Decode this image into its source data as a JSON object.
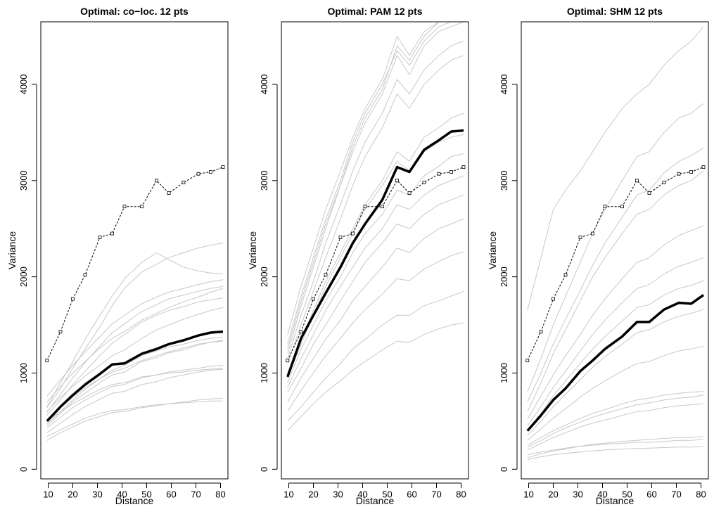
{
  "chart_data": [
    {
      "type": "line",
      "title": "Optimal: co−loc. 12 pts",
      "xlabel": "Distance",
      "ylabel": "Variance",
      "xlim": [
        7,
        83
      ],
      "ylim": [
        -100,
        4650
      ],
      "xticks": [
        10,
        20,
        30,
        40,
        50,
        60,
        70,
        80
      ],
      "yticks": [
        0,
        1000,
        2000,
        3000,
        4000
      ],
      "x": [
        9.5,
        15,
        20,
        25,
        31,
        36,
        41,
        48,
        54,
        59,
        65,
        71,
        76,
        81
      ],
      "series": [
        {
          "role": "empirical",
          "values": [
            1130,
            1430,
            1770,
            2020,
            2410,
            2450,
            2730,
            2730,
            3000,
            2870,
            2980,
            3070,
            3090,
            3140
          ]
        },
        {
          "role": "mean",
          "values": [
            500,
            650,
            770,
            880,
            990,
            1090,
            1100,
            1200,
            1250,
            1300,
            1340,
            1390,
            1420,
            1430
          ]
        },
        {
          "role": "simulated",
          "values": [
            600,
            750,
            860,
            970,
            1080,
            1180,
            1240,
            1360,
            1450,
            1500,
            1560,
            1610,
            1650,
            1680
          ]
        },
        {
          "role": "simulated",
          "values": [
            450,
            580,
            700,
            790,
            900,
            980,
            1010,
            1120,
            1160,
            1210,
            1240,
            1290,
            1320,
            1330
          ]
        },
        {
          "role": "simulated",
          "values": [
            700,
            860,
            1000,
            1120,
            1260,
            1360,
            1430,
            1550,
            1620,
            1680,
            1740,
            1790,
            1840,
            1880
          ]
        },
        {
          "role": "simulated",
          "values": [
            380,
            480,
            570,
            650,
            730,
            790,
            810,
            880,
            910,
            950,
            980,
            1010,
            1030,
            1040
          ]
        },
        {
          "role": "simulated",
          "values": [
            650,
            900,
            1120,
            1350,
            1600,
            1800,
            1980,
            2150,
            2250,
            2180,
            2100,
            2060,
            2040,
            2030
          ]
        },
        {
          "role": "simulated",
          "values": [
            520,
            640,
            750,
            850,
            940,
            1010,
            1050,
            1130,
            1180,
            1220,
            1260,
            1300,
            1320,
            1340
          ]
        },
        {
          "role": "simulated",
          "values": [
            300,
            380,
            440,
            500,
            550,
            590,
            600,
            640,
            660,
            680,
            700,
            720,
            730,
            740
          ]
        },
        {
          "role": "simulated",
          "values": [
            560,
            720,
            880,
            1020,
            1180,
            1310,
            1400,
            1530,
            1600,
            1650,
            1690,
            1740,
            1760,
            1780
          ]
        },
        {
          "role": "simulated",
          "values": [
            430,
            540,
            640,
            720,
            800,
            860,
            880,
            950,
            980,
            1010,
            1030,
            1050,
            1070,
            1080
          ]
        },
        {
          "role": "simulated",
          "values": [
            640,
            840,
            1050,
            1250,
            1480,
            1700,
            1880,
            2050,
            2130,
            2200,
            2250,
            2300,
            2330,
            2350
          ]
        },
        {
          "role": "simulated",
          "values": [
            500,
            600,
            680,
            750,
            830,
            880,
            900,
            960,
            980,
            1000,
            1010,
            1030,
            1040,
            1050
          ]
        },
        {
          "role": "simulated",
          "values": [
            760,
            930,
            1080,
            1220,
            1380,
            1510,
            1600,
            1720,
            1790,
            1840,
            1880,
            1920,
            1950,
            1970
          ]
        },
        {
          "role": "simulated",
          "values": [
            340,
            410,
            470,
            530,
            580,
            610,
            620,
            650,
            670,
            680,
            690,
            700,
            710,
            710
          ]
        },
        {
          "role": "simulated",
          "values": [
            590,
            780,
            950,
            1110,
            1280,
            1420,
            1510,
            1640,
            1710,
            1770,
            1810,
            1850,
            1880,
            1900
          ]
        },
        {
          "role": "simulated",
          "values": [
            470,
            600,
            720,
            830,
            940,
            1030,
            1080,
            1180,
            1230,
            1270,
            1300,
            1340,
            1360,
            1370
          ]
        }
      ]
    },
    {
      "type": "line",
      "title": "Optimal: PAM 12 pts",
      "xlabel": "Distance",
      "ylabel": "Variance",
      "xlim": [
        7,
        83
      ],
      "ylim": [
        -100,
        4650
      ],
      "xticks": [
        10,
        20,
        30,
        40,
        50,
        60,
        70,
        80
      ],
      "yticks": [
        0,
        1000,
        2000,
        3000,
        4000
      ],
      "x": [
        9.5,
        15,
        20,
        25,
        31,
        36,
        41,
        48,
        54,
        59,
        65,
        71,
        76,
        81
      ],
      "series": [
        {
          "role": "empirical",
          "values": [
            1130,
            1430,
            1770,
            2020,
            2410,
            2450,
            2730,
            2730,
            3000,
            2870,
            2980,
            3070,
            3090,
            3140
          ]
        },
        {
          "role": "mean",
          "values": [
            960,
            1360,
            1600,
            1830,
            2100,
            2350,
            2550,
            2800,
            3140,
            3090,
            3320,
            3420,
            3510,
            3520
          ]
        },
        {
          "role": "simulated",
          "values": [
            1200,
            1700,
            2100,
            2500,
            2950,
            3300,
            3600,
            3900,
            4300,
            4100,
            4400,
            4550,
            4600,
            4650
          ]
        },
        {
          "role": "simulated",
          "values": [
            900,
            1250,
            1500,
            1750,
            2000,
            2250,
            2450,
            2650,
            2900,
            2850,
            3050,
            3150,
            3250,
            3280
          ]
        },
        {
          "role": "simulated",
          "values": [
            1400,
            1900,
            2300,
            2700,
            3100,
            3450,
            3750,
            4050,
            4500,
            4300,
            4550,
            4650,
            4650,
            4650
          ]
        },
        {
          "role": "simulated",
          "values": [
            700,
            950,
            1150,
            1350,
            1550,
            1750,
            1900,
            2100,
            2300,
            2250,
            2400,
            2500,
            2550,
            2600
          ]
        },
        {
          "role": "simulated",
          "values": [
            1100,
            1500,
            1850,
            2200,
            2600,
            2950,
            3250,
            3550,
            3900,
            3750,
            4000,
            4150,
            4250,
            4300
          ]
        },
        {
          "role": "simulated",
          "values": [
            500,
            650,
            800,
            950,
            1100,
            1250,
            1350,
            1500,
            1600,
            1600,
            1700,
            1750,
            1800,
            1850
          ]
        },
        {
          "role": "simulated",
          "values": [
            1000,
            1350,
            1650,
            1950,
            2250,
            2500,
            2750,
            3000,
            3300,
            3200,
            3450,
            3550,
            3650,
            3700
          ]
        },
        {
          "role": "simulated",
          "values": [
            1300,
            1800,
            2200,
            2600,
            3000,
            3400,
            3700,
            4000,
            4350,
            4200,
            4450,
            4600,
            4650,
            4650
          ]
        },
        {
          "role": "simulated",
          "values": [
            800,
            1050,
            1300,
            1500,
            1750,
            1950,
            2150,
            2350,
            2550,
            2500,
            2650,
            2750,
            2800,
            2850
          ]
        },
        {
          "role": "simulated",
          "values": [
            400,
            550,
            680,
            800,
            920,
            1030,
            1120,
            1240,
            1330,
            1320,
            1400,
            1460,
            1500,
            1520
          ]
        },
        {
          "role": "simulated",
          "values": [
            1150,
            1600,
            1950,
            2350,
            2750,
            3100,
            3400,
            3700,
            4050,
            3900,
            4150,
            4300,
            4400,
            4450
          ]
        },
        {
          "role": "simulated",
          "values": [
            600,
            820,
            1000,
            1180,
            1360,
            1520,
            1660,
            1820,
            1980,
            1960,
            2080,
            2160,
            2220,
            2260
          ]
        },
        {
          "role": "simulated",
          "values": [
            950,
            1300,
            1600,
            1900,
            2200,
            2450,
            2700,
            2950,
            3200,
            3100,
            3300,
            3400,
            3450,
            3480
          ]
        },
        {
          "role": "simulated",
          "values": [
            1250,
            1750,
            2150,
            2550,
            2950,
            3350,
            3650,
            3950,
            4400,
            4250,
            4500,
            4650,
            4650,
            4650
          ]
        },
        {
          "role": "simulated",
          "values": [
            850,
            1150,
            1400,
            1650,
            1900,
            2100,
            2300,
            2500,
            2750,
            2700,
            2850,
            2950,
            3000,
            3050
          ]
        }
      ]
    },
    {
      "type": "line",
      "title": "Optimal: SHM 12 pts",
      "xlabel": "Distance",
      "ylabel": "Variance",
      "xlim": [
        7,
        83
      ],
      "ylim": [
        -100,
        4650
      ],
      "xticks": [
        10,
        20,
        30,
        40,
        50,
        60,
        70,
        80
      ],
      "yticks": [
        0,
        1000,
        2000,
        3000,
        4000
      ],
      "x": [
        9.5,
        15,
        20,
        25,
        31,
        36,
        41,
        48,
        54,
        59,
        65,
        71,
        76,
        81
      ],
      "series": [
        {
          "role": "empirical",
          "values": [
            1130,
            1430,
            1770,
            2020,
            2410,
            2450,
            2730,
            2730,
            3000,
            2870,
            2980,
            3070,
            3090,
            3140
          ]
        },
        {
          "role": "mean",
          "values": [
            400,
            560,
            720,
            840,
            1020,
            1130,
            1250,
            1380,
            1530,
            1530,
            1660,
            1730,
            1720,
            1810
          ]
        },
        {
          "role": "simulated",
          "values": [
            1650,
            2200,
            2700,
            2900,
            3100,
            3300,
            3500,
            3750,
            3900,
            4000,
            4200,
            4350,
            4450,
            4600
          ]
        },
        {
          "role": "simulated",
          "values": [
            150,
            180,
            200,
            220,
            240,
            250,
            260,
            270,
            280,
            280,
            290,
            300,
            300,
            310
          ]
        },
        {
          "role": "simulated",
          "values": [
            600,
            900,
            1200,
            1450,
            1750,
            2000,
            2200,
            2450,
            2650,
            2700,
            2850,
            2950,
            3000,
            3100
          ]
        },
        {
          "role": "simulated",
          "values": [
            250,
            330,
            400,
            460,
            530,
            580,
            620,
            680,
            720,
            740,
            770,
            790,
            800,
            810
          ]
        },
        {
          "role": "simulated",
          "values": [
            450,
            650,
            850,
            1020,
            1230,
            1400,
            1550,
            1730,
            1880,
            1920,
            2030,
            2110,
            2150,
            2200
          ]
        },
        {
          "role": "simulated",
          "values": [
            100,
            130,
            150,
            165,
            180,
            190,
            200,
            210,
            215,
            220,
            225,
            230,
            230,
            235
          ]
        },
        {
          "role": "simulated",
          "values": [
            800,
            1150,
            1500,
            1800,
            2150,
            2450,
            2700,
            3000,
            3250,
            3300,
            3500,
            3650,
            3700,
            3800
          ]
        },
        {
          "role": "simulated",
          "values": [
            300,
            420,
            530,
            630,
            750,
            840,
            920,
            1020,
            1100,
            1120,
            1180,
            1230,
            1250,
            1280
          ]
        },
        {
          "role": "simulated",
          "values": [
            350,
            500,
            650,
            780,
            930,
            1060,
            1170,
            1300,
            1420,
            1450,
            1530,
            1590,
            1620,
            1660
          ]
        },
        {
          "role": "simulated",
          "values": [
            200,
            270,
            330,
            380,
            440,
            480,
            510,
            560,
            600,
            610,
            640,
            660,
            670,
            680
          ]
        },
        {
          "role": "simulated",
          "values": [
            520,
            760,
            980,
            1180,
            1400,
            1600,
            1770,
            1980,
            2150,
            2200,
            2330,
            2430,
            2480,
            2530
          ]
        },
        {
          "role": "simulated",
          "values": [
            700,
            1000,
            1300,
            1560,
            1860,
            2120,
            2350,
            2620,
            2850,
            2900,
            3080,
            3200,
            3260,
            3340
          ]
        },
        {
          "role": "simulated",
          "values": [
            230,
            300,
            370,
            430,
            490,
            540,
            580,
            630,
            670,
            690,
            720,
            740,
            750,
            770
          ]
        },
        {
          "role": "simulated",
          "values": [
            400,
            580,
            760,
            920,
            1100,
            1250,
            1380,
            1540,
            1680,
            1710,
            1810,
            1880,
            1910,
            1960
          ]
        },
        {
          "role": "simulated",
          "values": [
            120,
            160,
            190,
            210,
            240,
            260,
            270,
            290,
            300,
            310,
            320,
            330,
            330,
            340
          ]
        }
      ]
    }
  ]
}
